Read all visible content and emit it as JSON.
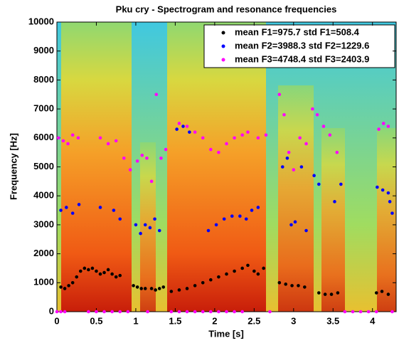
{
  "chart_data": {
    "type": "scatter",
    "title": "Pku cry - Spectrogram and resonance frequencies",
    "x_label": "Time [s]",
    "y_label": "Frequency [Hz]",
    "xlim": [
      0,
      4.3
    ],
    "ylim": [
      0,
      10000
    ],
    "xticks": [
      0,
      0.5,
      1,
      1.5,
      2,
      2.5,
      3,
      3.5,
      4
    ],
    "yticks": [
      0,
      1000,
      2000,
      3000,
      4000,
      5000,
      6000,
      7000,
      8000,
      9000,
      10000
    ],
    "legend": "upper right",
    "series": [
      {
        "name": "mean F1=975.7 std F1=508.4",
        "color": "#000000",
        "x": [
          0.05,
          0.1,
          0.15,
          0.2,
          0.25,
          0.3,
          0.35,
          0.4,
          0.45,
          0.5,
          0.55,
          0.6,
          0.65,
          0.7,
          0.75,
          0.8,
          0.97,
          1.02,
          1.07,
          1.12,
          1.2,
          1.25,
          1.3,
          1.35,
          1.45,
          1.55,
          1.65,
          1.75,
          1.85,
          1.95,
          2.05,
          2.15,
          2.25,
          2.35,
          2.42,
          2.5,
          2.55,
          2.62,
          2.82,
          2.9,
          2.98,
          3.06,
          3.14,
          3.32,
          3.4,
          3.48,
          3.56,
          4.05,
          4.12,
          4.2
        ],
        "values": [
          850,
          800,
          900,
          1000,
          1200,
          1400,
          1500,
          1450,
          1500,
          1400,
          1300,
          1350,
          1450,
          1300,
          1200,
          1250,
          900,
          850,
          800,
          800,
          800,
          750,
          800,
          850,
          700,
          750,
          800,
          900,
          1000,
          1100,
          1200,
          1300,
          1400,
          1500,
          1600,
          1400,
          1300,
          1500,
          1000,
          950,
          900,
          900,
          850,
          650,
          600,
          600,
          650,
          650,
          700,
          600
        ]
      },
      {
        "name": "mean F2=3988.3 std F2=1229.6",
        "color": "#0000ff",
        "x": [
          0.05,
          0.12,
          0.2,
          0.28,
          0.55,
          0.72,
          0.8,
          1.0,
          1.06,
          1.12,
          1.18,
          1.24,
          1.3,
          1.52,
          1.6,
          1.68,
          1.92,
          2.02,
          2.12,
          2.22,
          2.32,
          2.4,
          2.47,
          2.55,
          2.86,
          2.92,
          2.97,
          3.02,
          3.1,
          3.16,
          3.26,
          3.32,
          3.52,
          3.6,
          4.06,
          4.13,
          4.2,
          4.22,
          4.25
        ],
        "values": [
          3500,
          3600,
          3400,
          3700,
          3600,
          3500,
          3200,
          3000,
          2700,
          3000,
          2900,
          3200,
          2800,
          6300,
          6400,
          6200,
          2800,
          3000,
          3200,
          3300,
          3300,
          3200,
          3500,
          3600,
          5000,
          5300,
          3000,
          3100,
          5000,
          2800,
          4700,
          4400,
          3800,
          4400,
          4300,
          4200,
          4100,
          3800,
          3400
        ]
      },
      {
        "name": "mean F3=4748.4 std F3=2403.9",
        "color": "#ff00ff",
        "x": [
          0.02,
          0.08,
          0.14,
          0.2,
          0.27,
          0.55,
          0.65,
          0.75,
          0.85,
          0.93,
          1.02,
          1.08,
          1.14,
          1.2,
          1.26,
          1.32,
          1.38,
          1.55,
          1.65,
          1.75,
          1.85,
          1.95,
          2.05,
          2.15,
          2.25,
          2.35,
          2.42,
          2.55,
          2.65,
          2.82,
          2.88,
          2.94,
          3.0,
          3.08,
          3.16,
          3.24,
          3.3,
          3.38,
          3.46,
          3.55,
          4.08,
          4.14,
          4.2,
          0,
          0.05,
          0.1,
          0.4,
          0.5,
          0.6,
          0.7,
          0.8,
          0.9,
          1.15,
          1.45,
          1.55,
          1.65,
          1.75,
          1.85,
          1.95,
          2.05,
          2.15,
          2.25,
          2.35,
          2.7,
          3.65,
          3.75,
          3.85,
          3.95,
          4.05,
          4.25
        ],
        "values": [
          6000,
          5900,
          5800,
          6100,
          6000,
          6000,
          5800,
          5900,
          5300,
          4900,
          5200,
          5400,
          5300,
          4500,
          7500,
          5300,
          5600,
          6500,
          6400,
          6200,
          6000,
          5600,
          5500,
          5800,
          6000,
          6100,
          6200,
          6000,
          6100,
          7500,
          6800,
          5500,
          4900,
          6000,
          5800,
          7000,
          6800,
          6400,
          6100,
          5500,
          6300,
          6500,
          6400,
          0,
          0,
          0,
          0,
          0,
          0,
          0,
          0,
          0,
          0,
          0,
          0,
          0,
          0,
          0,
          0,
          0,
          0,
          0,
          0,
          0,
          0,
          0,
          0,
          0,
          0,
          0
        ]
      }
    ]
  }
}
